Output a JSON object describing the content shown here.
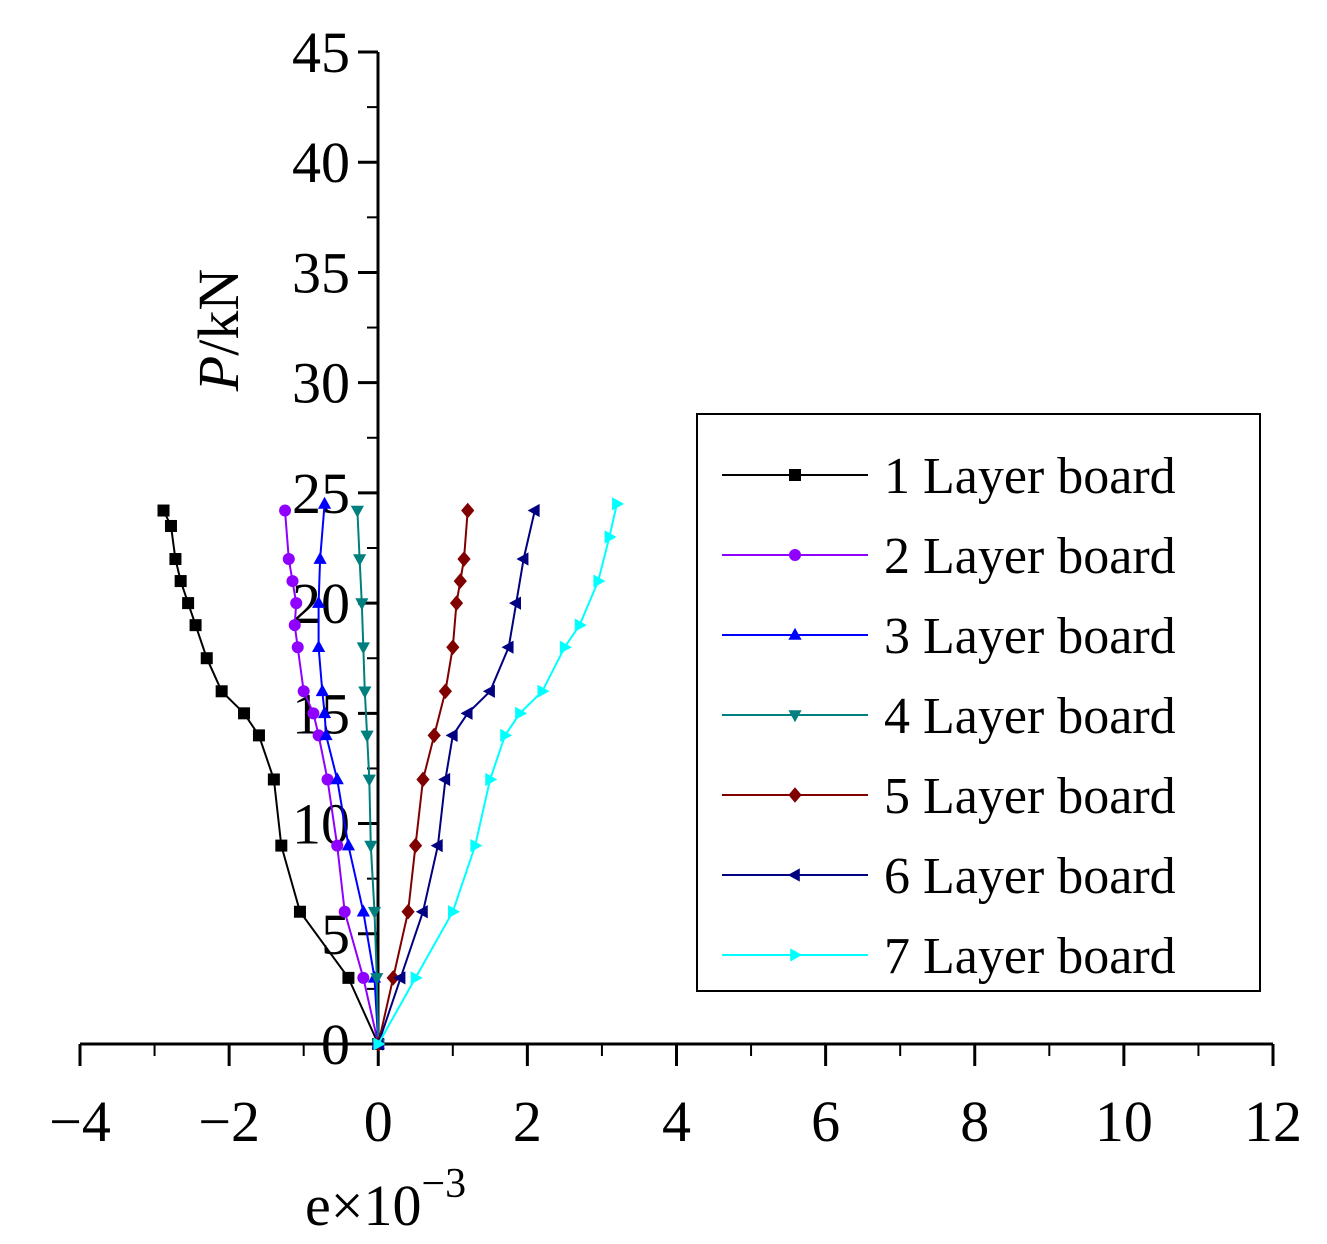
{
  "chart_data": {
    "type": "line",
    "title": "",
    "xlabel": {
      "base": "e×10",
      "exponent": "−3"
    },
    "ylabel": {
      "italic": "P",
      "rest": "/kN"
    },
    "xlim": [
      -4,
      12
    ],
    "ylim": [
      0,
      45
    ],
    "xticks": [
      -4,
      -2,
      0,
      2,
      4,
      6,
      8,
      10,
      12
    ],
    "xtick_labels": [
      "−4",
      "−2",
      "0",
      "2",
      "4",
      "6",
      "8",
      "10",
      "12"
    ],
    "yticks": [
      0,
      5,
      10,
      15,
      20,
      25,
      30,
      35,
      40,
      45
    ],
    "ytick_labels": [
      "0",
      "5",
      "10",
      "15",
      "20",
      "25",
      "30",
      "35",
      "40",
      "45"
    ],
    "grid": false,
    "legend_position": "right",
    "series": [
      {
        "name": "1 Layer board",
        "color": "#000000",
        "marker": "square",
        "x": [
          0,
          -0.4,
          -1.05,
          -1.3,
          -1.4,
          -1.6,
          -1.8,
          -2.1,
          -2.3,
          -2.45,
          -2.55,
          -2.65,
          -2.72,
          -2.78,
          -2.88
        ],
        "y": [
          0,
          3,
          6,
          9,
          12,
          14,
          15,
          16,
          17.5,
          19,
          20,
          21,
          22,
          23.5,
          24.2
        ]
      },
      {
        "name": "2 Layer board",
        "color": "#8f00ff",
        "marker": "circle",
        "x": [
          0,
          -0.2,
          -0.45,
          -0.55,
          -0.68,
          -0.8,
          -0.87,
          -1.0,
          -1.08,
          -1.12,
          -1.1,
          -1.15,
          -1.2,
          -1.25
        ],
        "y": [
          0,
          3,
          6,
          9,
          12,
          14,
          15,
          16,
          18,
          19,
          20,
          21,
          22,
          24.2
        ]
      },
      {
        "name": "3 Layer board",
        "color": "#0000ff",
        "marker": "triangle-up",
        "x": [
          0,
          -0.05,
          -0.2,
          -0.4,
          -0.55,
          -0.7,
          -0.72,
          -0.75,
          -0.8,
          -0.8,
          -0.78,
          -0.72
        ],
        "y": [
          0,
          3,
          6,
          9,
          12,
          14,
          15,
          16,
          18,
          20,
          22,
          24.5
        ]
      },
      {
        "name": "4 Layer board",
        "color": "#007f7f",
        "marker": "triangle-down",
        "x": [
          0,
          -0.02,
          -0.05,
          -0.1,
          -0.12,
          -0.15,
          -0.18,
          -0.2,
          -0.22,
          -0.25,
          -0.28
        ],
        "y": [
          0,
          3,
          6,
          9,
          12,
          14,
          16,
          18,
          20,
          22,
          24.2
        ]
      },
      {
        "name": "5 Layer board",
        "color": "#800000",
        "marker": "diamond",
        "x": [
          0,
          0.2,
          0.4,
          0.5,
          0.6,
          0.75,
          0.9,
          1.0,
          1.05,
          1.1,
          1.15,
          1.2
        ],
        "y": [
          0,
          3,
          6,
          9,
          12,
          14,
          16,
          18,
          20,
          21,
          22,
          24.2
        ]
      },
      {
        "name": "6 Layer board",
        "color": "#000080",
        "marker": "triangle-left",
        "x": [
          0,
          0.3,
          0.6,
          0.8,
          0.9,
          1.0,
          1.2,
          1.5,
          1.75,
          1.85,
          1.95,
          2.1
        ],
        "y": [
          0,
          3,
          6,
          9,
          12,
          14,
          15,
          16,
          18,
          20,
          22,
          24.2
        ]
      },
      {
        "name": "7 Layer board",
        "color": "#00ffff",
        "marker": "triangle-right",
        "x": [
          0,
          0.5,
          1.0,
          1.3,
          1.5,
          1.7,
          1.9,
          2.2,
          2.5,
          2.7,
          2.95,
          3.1,
          3.2
        ],
        "y": [
          0,
          3,
          6,
          9,
          12,
          14,
          15,
          16,
          18,
          19,
          21,
          23,
          24.5
        ]
      }
    ]
  }
}
